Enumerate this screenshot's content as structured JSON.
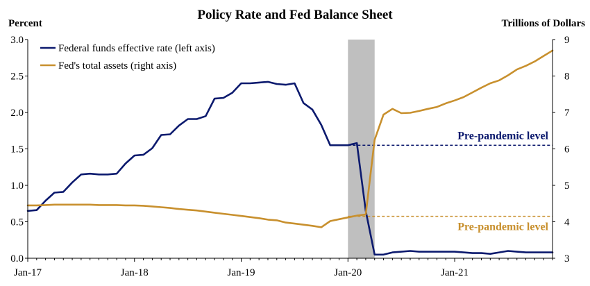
{
  "chart_data": {
    "type": "line",
    "title": "Policy Rate and Fed Balance Sheet",
    "left_axis": {
      "label": "Percent",
      "ylim": [
        0.0,
        3.0
      ],
      "ticks": [
        "0.0",
        "0.5",
        "1.0",
        "1.5",
        "2.0",
        "2.5",
        "3.0"
      ]
    },
    "right_axis": {
      "label": "Trillions of Dollars",
      "ylim": [
        3,
        9
      ],
      "ticks": [
        "3",
        "4",
        "5",
        "6",
        "7",
        "8",
        "9"
      ]
    },
    "x_axis": {
      "ticks": [
        "Jan-17",
        "Jan-18",
        "Jan-19",
        "Jan-20",
        "Jan-21"
      ],
      "start": "2017-01",
      "end": "2021-12"
    },
    "recession_shading": {
      "start": "2020-01",
      "end": "2020-04",
      "color": "#bfbfbf"
    },
    "legend_position": "top-left",
    "series": [
      {
        "name": "Federal funds effective rate (left axis)",
        "axis": "left",
        "color": "#0c1a6e",
        "x": [
          "2017-01",
          "2017-02",
          "2017-03",
          "2017-04",
          "2017-05",
          "2017-06",
          "2017-07",
          "2017-08",
          "2017-09",
          "2017-10",
          "2017-11",
          "2017-12",
          "2018-01",
          "2018-02",
          "2018-03",
          "2018-04",
          "2018-05",
          "2018-06",
          "2018-07",
          "2018-08",
          "2018-09",
          "2018-10",
          "2018-11",
          "2018-12",
          "2019-01",
          "2019-02",
          "2019-03",
          "2019-04",
          "2019-05",
          "2019-06",
          "2019-07",
          "2019-08",
          "2019-09",
          "2019-10",
          "2019-11",
          "2019-12",
          "2020-01",
          "2020-02",
          "2020-03",
          "2020-04",
          "2020-05",
          "2020-06",
          "2020-07",
          "2020-08",
          "2020-09",
          "2020-10",
          "2020-11",
          "2020-12",
          "2021-01",
          "2021-02",
          "2021-03",
          "2021-04",
          "2021-05",
          "2021-06",
          "2021-07",
          "2021-08",
          "2021-09",
          "2021-10",
          "2021-11",
          "2021-12"
        ],
        "values": [
          0.65,
          0.66,
          0.79,
          0.9,
          0.91,
          1.04,
          1.15,
          1.16,
          1.15,
          1.15,
          1.16,
          1.3,
          1.41,
          1.42,
          1.51,
          1.69,
          1.7,
          1.82,
          1.91,
          1.91,
          1.95,
          2.19,
          2.2,
          2.27,
          2.4,
          2.4,
          2.41,
          2.42,
          2.39,
          2.38,
          2.4,
          2.13,
          2.04,
          1.83,
          1.55,
          1.55,
          1.55,
          1.58,
          0.65,
          0.05,
          0.05,
          0.08,
          0.09,
          0.1,
          0.09,
          0.09,
          0.09,
          0.09,
          0.09,
          0.08,
          0.07,
          0.07,
          0.06,
          0.08,
          0.1,
          0.09,
          0.08,
          0.08,
          0.08,
          0.08
        ]
      },
      {
        "name": "Fed's total assets (right axis)",
        "axis": "right",
        "color": "#c8902e",
        "x": [
          "2017-01",
          "2017-02",
          "2017-03",
          "2017-04",
          "2017-05",
          "2017-06",
          "2017-07",
          "2017-08",
          "2017-09",
          "2017-10",
          "2017-11",
          "2017-12",
          "2018-01",
          "2018-02",
          "2018-03",
          "2018-04",
          "2018-05",
          "2018-06",
          "2018-07",
          "2018-08",
          "2018-09",
          "2018-10",
          "2018-11",
          "2018-12",
          "2019-01",
          "2019-02",
          "2019-03",
          "2019-04",
          "2019-05",
          "2019-06",
          "2019-07",
          "2019-08",
          "2019-09",
          "2019-10",
          "2019-11",
          "2019-12",
          "2020-01",
          "2020-02",
          "2020-03",
          "2020-04",
          "2020-05",
          "2020-06",
          "2020-07",
          "2020-08",
          "2020-09",
          "2020-10",
          "2020-11",
          "2020-12",
          "2021-01",
          "2021-02",
          "2021-03",
          "2021-04",
          "2021-05",
          "2021-06",
          "2021-07",
          "2021-08",
          "2021-09",
          "2021-10",
          "2021-11",
          "2021-12"
        ],
        "values": [
          4.45,
          4.45,
          4.46,
          4.47,
          4.47,
          4.47,
          4.47,
          4.47,
          4.46,
          4.46,
          4.46,
          4.45,
          4.45,
          4.44,
          4.42,
          4.4,
          4.38,
          4.35,
          4.33,
          4.31,
          4.28,
          4.25,
          4.22,
          4.19,
          4.16,
          4.13,
          4.1,
          4.06,
          4.04,
          3.98,
          3.95,
          3.92,
          3.89,
          3.85,
          4.02,
          4.07,
          4.12,
          4.17,
          4.2,
          6.25,
          6.94,
          7.1,
          6.98,
          6.99,
          7.04,
          7.1,
          7.15,
          7.25,
          7.33,
          7.42,
          7.55,
          7.68,
          7.8,
          7.88,
          8.02,
          8.18,
          8.28,
          8.4,
          8.55,
          8.7
        ]
      }
    ],
    "reference_lines": [
      {
        "axis": "left",
        "value": 1.55,
        "from": "2020-01",
        "to": "2021-12",
        "style": "dashed",
        "color": "#0c1a6e",
        "label": "Pre-pandemic level"
      },
      {
        "axis": "right",
        "value": 4.15,
        "from": "2020-01",
        "to": "2021-12",
        "style": "dashed",
        "color": "#c8902e",
        "label": "Pre-pandemic level"
      }
    ]
  }
}
